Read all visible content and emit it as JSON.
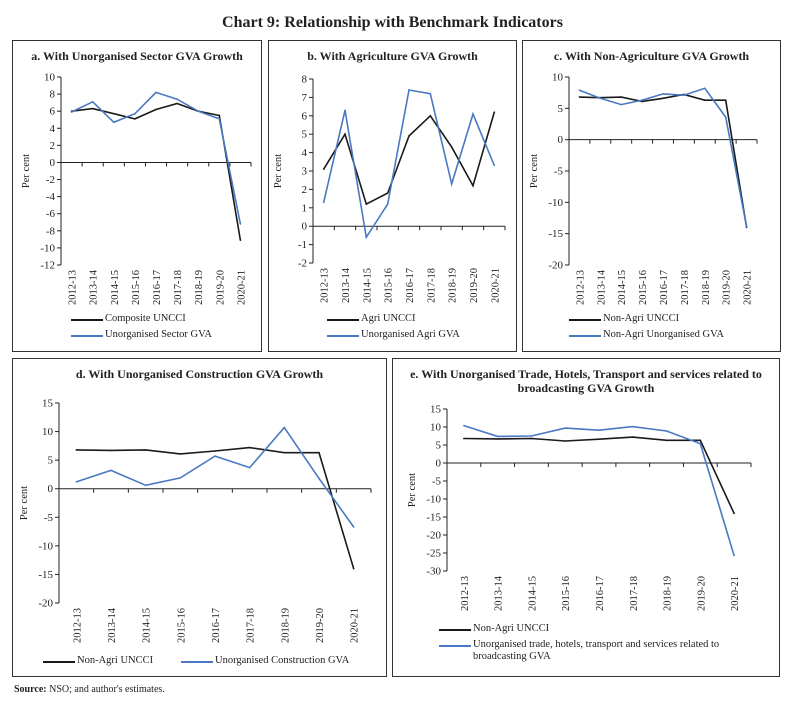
{
  "title": "Chart 9: Relationship with Benchmark Indicators",
  "source": {
    "label": "Source:",
    "text": "NSO; and author's estimates."
  },
  "colors": {
    "black": "#1a1a1a",
    "blue": "#4a78c2"
  },
  "chart_data": [
    {
      "id": "a",
      "type": "line",
      "title": "a. With Unorganised Sector GVA Growth",
      "ylabel": "Per cent",
      "ylim": [
        -12,
        10
      ],
      "yticks": [
        10,
        8,
        6,
        4,
        2,
        0,
        -2,
        -4,
        -6,
        -8,
        -10,
        -12
      ],
      "categories": [
        "2012-13",
        "2013-14",
        "2014-15",
        "2015-16",
        "2016-17",
        "2017-18",
        "2018-19",
        "2019-20",
        "2020-21"
      ],
      "series": [
        {
          "name": "Composite UNCCI",
          "color": "#1a1a1a",
          "values": [
            6.0,
            6.3,
            5.7,
            5.1,
            6.2,
            6.9,
            6.0,
            5.5,
            -9.1
          ]
        },
        {
          "name": "Unorganised Sector GVA",
          "color": "#4a78c2",
          "values": [
            5.9,
            7.1,
            4.7,
            5.7,
            8.2,
            7.4,
            6.0,
            5.1,
            -7.2
          ]
        }
      ],
      "legend": "bottom"
    },
    {
      "id": "b",
      "type": "line",
      "title": "b. With Agriculture GVA Growth",
      "ylabel": "Per cent",
      "ylim": [
        -2,
        8
      ],
      "yticks": [
        8,
        7,
        6,
        5,
        4,
        3,
        2,
        1,
        0,
        -1,
        -2
      ],
      "categories": [
        "2012-13",
        "2013-14",
        "2014-15",
        "2015-16",
        "2016-17",
        "2017-18",
        "2018-19",
        "2019-20",
        "2020-21"
      ],
      "series": [
        {
          "name": "Agri UNCCI",
          "color": "#1a1a1a",
          "values": [
            3.1,
            5.0,
            1.2,
            1.8,
            4.9,
            6.0,
            4.3,
            2.2,
            6.2
          ]
        },
        {
          "name": "Unorganised Agri GVA",
          "color": "#4a78c2",
          "values": [
            1.3,
            6.3,
            -0.6,
            1.2,
            7.4,
            7.2,
            2.3,
            6.1,
            3.3
          ]
        }
      ],
      "legend": "bottom"
    },
    {
      "id": "c",
      "type": "line",
      "title": "c. With Non-Agriculture GVA Growth",
      "ylabel": "Per cent",
      "ylim": [
        -20,
        10
      ],
      "yticks": [
        10,
        5,
        0,
        -5,
        -10,
        -15,
        -20
      ],
      "categories": [
        "2012-13",
        "2013-14",
        "2014-15",
        "2015-16",
        "2016-17",
        "2017-18",
        "2018-19",
        "2019-20",
        "2020-21"
      ],
      "series": [
        {
          "name": "Non-Agri UNCCI",
          "color": "#1a1a1a",
          "values": [
            6.8,
            6.7,
            6.8,
            6.1,
            6.6,
            7.2,
            6.3,
            6.3,
            -14.0
          ]
        },
        {
          "name": "Non-Agri Unorganised GVA",
          "color": "#4a78c2",
          "values": [
            7.9,
            6.6,
            5.6,
            6.3,
            7.3,
            7.1,
            8.2,
            3.6,
            -13.9
          ]
        }
      ],
      "legend": "bottom"
    },
    {
      "id": "d",
      "type": "line",
      "title": "d. With Unorganised Construction GVA Growth",
      "ylabel": "Per cent",
      "ylim": [
        -20,
        15
      ],
      "yticks": [
        15,
        10,
        5,
        0,
        -5,
        -10,
        -15,
        -20
      ],
      "categories": [
        "2012-13",
        "2013-14",
        "2014-15",
        "2015-16",
        "2016-17",
        "2017-18",
        "2018-19",
        "2019-20",
        "2020-21"
      ],
      "series": [
        {
          "name": "Non-Agri UNCCI",
          "color": "#1a1a1a",
          "values": [
            6.8,
            6.7,
            6.8,
            6.1,
            6.6,
            7.2,
            6.3,
            6.3,
            -14.0
          ]
        },
        {
          "name": "Unorganised Construction GVA",
          "color": "#4a78c2",
          "values": [
            1.2,
            3.2,
            0.6,
            1.9,
            5.7,
            3.7,
            10.7,
            1.8,
            -6.7
          ]
        }
      ],
      "legend": "bottom"
    },
    {
      "id": "e",
      "type": "line",
      "title": "e. With Unorganised Trade, Hotels, Transport and services related to broadcasting GVA Growth",
      "ylabel": "Per cent",
      "ylim": [
        -30,
        15
      ],
      "yticks": [
        15,
        10,
        5,
        0,
        -5,
        -10,
        -15,
        -20,
        -25,
        -30
      ],
      "categories": [
        "2012-13",
        "2013-14",
        "2014-15",
        "2015-16",
        "2016-17",
        "2017-18",
        "2018-19",
        "2019-20",
        "2020-21"
      ],
      "series": [
        {
          "name": "Non-Agri UNCCI",
          "color": "#1a1a1a",
          "values": [
            6.8,
            6.7,
            6.8,
            6.1,
            6.6,
            7.2,
            6.3,
            6.3,
            -14.0
          ]
        },
        {
          "name": "Unorganised trade, hotels, transport and services related to broadcasting GVA",
          "color": "#4a78c2",
          "values": [
            10.4,
            7.4,
            7.5,
            9.7,
            9.1,
            10.1,
            8.9,
            5.4,
            -25.7
          ]
        }
      ],
      "legend": "bottom"
    }
  ]
}
